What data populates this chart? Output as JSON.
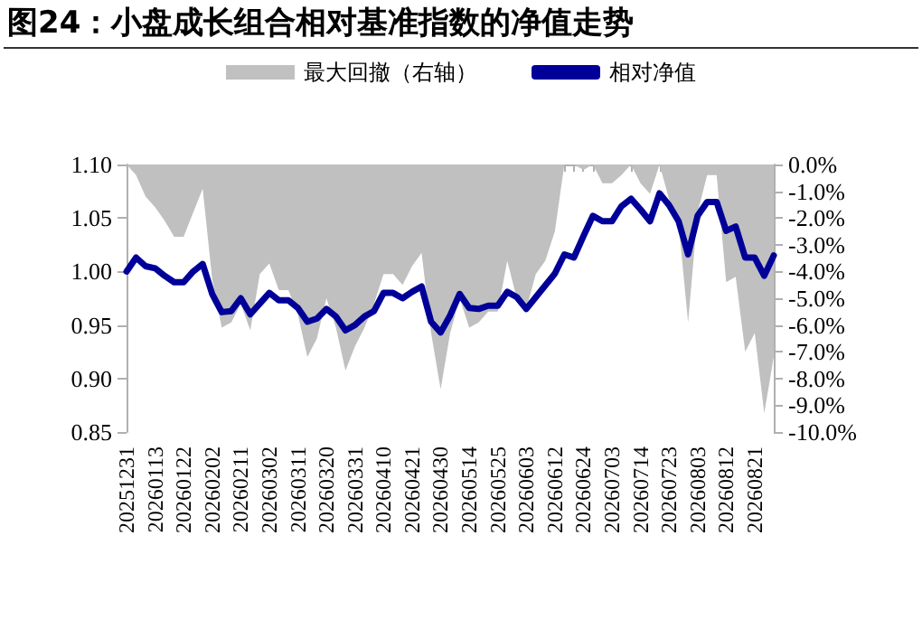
{
  "chart_data": {
    "type": "line",
    "title": "图24：小盘成长组合相对基准指数的净值走势",
    "categories": [
      "20251231",
      null,
      null,
      "20260113",
      null,
      null,
      "20260122",
      null,
      null,
      "20260202",
      null,
      null,
      "20260211",
      null,
      null,
      "20260302",
      null,
      null,
      "20260311",
      null,
      null,
      "20260320",
      null,
      null,
      "20260331",
      null,
      null,
      "20260410",
      null,
      null,
      "20260421",
      null,
      null,
      "20260430",
      null,
      null,
      "20260514",
      null,
      null,
      "20260525",
      null,
      null,
      "20260603",
      null,
      null,
      "20260612",
      null,
      null,
      "20260624",
      null,
      null,
      "20260703",
      null,
      null,
      "20260714",
      null,
      null,
      "20260723",
      null,
      null,
      "20260803",
      null,
      null,
      "20260812",
      null,
      null,
      "20260821",
      null,
      null
    ],
    "series": [
      {
        "name": "最大回撤（右轴）",
        "type": "area",
        "axis": "y2",
        "color": "#c0c0c0",
        "values": [
          0,
          -0.4,
          -1.2,
          -1.6,
          -2.1,
          -2.7,
          -2.7,
          -1.8,
          -0.9,
          -4.3,
          -6.1,
          -5.9,
          -5.2,
          -6.2,
          -4.1,
          -3.7,
          -4.7,
          -4.7,
          -5.6,
          -7.2,
          -6.5,
          -5.0,
          -6.1,
          -7.7,
          -6.8,
          -6.1,
          -5.2,
          -4.1,
          -4.1,
          -4.5,
          -3.8,
          -3.3,
          -6.3,
          -8.4,
          -6.3,
          -5.0,
          -6.1,
          -5.9,
          -5.5,
          -5.5,
          -3.6,
          -5.0,
          -5.4,
          -4.1,
          -3.6,
          -2.5,
          0,
          0,
          -0.2,
          0,
          -0.7,
          -0.7,
          -0.4,
          0,
          -0.7,
          -1.1,
          0,
          -1.3,
          -2.2,
          -5.9,
          -1.8,
          -0.4,
          -0.4,
          -4.4,
          -4.2,
          -7.0,
          -6.3,
          -9.3,
          -7.2
        ]
      },
      {
        "name": "相对净值",
        "type": "line",
        "color": "#000099",
        "values": [
          1.0,
          1.013,
          1.005,
          1.003,
          0.996,
          0.99,
          0.99,
          1.0,
          1.007,
          0.979,
          0.962,
          0.963,
          0.975,
          0.96,
          0.97,
          0.98,
          0.973,
          0.973,
          0.966,
          0.953,
          0.956,
          0.965,
          0.958,
          0.945,
          0.95,
          0.958,
          0.963,
          0.98,
          0.98,
          0.975,
          0.981,
          0.986,
          0.953,
          0.943,
          0.959,
          0.979,
          0.966,
          0.965,
          0.968,
          0.968,
          0.981,
          0.976,
          0.965,
          0.976,
          0.987,
          0.998,
          1.016,
          1.013,
          1.033,
          1.052,
          1.047,
          1.047,
          1.061,
          1.068,
          1.058,
          1.047,
          1.073,
          1.062,
          1.047,
          1.016,
          1.052,
          1.065,
          1.065,
          1.038,
          1.042,
          1.013,
          1.013,
          0.996,
          1.015
        ]
      }
    ],
    "ylim": [
      0.85,
      1.1
    ],
    "yticks": [
      {
        "value": 0.85,
        "label": "0.85"
      },
      {
        "value": 0.9,
        "label": "0.90"
      },
      {
        "value": 0.95,
        "label": "0.95"
      },
      {
        "value": 1.0,
        "label": "1.00"
      },
      {
        "value": 1.05,
        "label": "1.05"
      },
      {
        "value": 1.1,
        "label": "1.10"
      }
    ],
    "y2lim": [
      -10,
      0
    ],
    "y2ticks": [
      {
        "value": -10,
        "label": "-10.0%"
      },
      {
        "value": -9,
        "label": "-9.0%"
      },
      {
        "value": -8,
        "label": "-8.0%"
      },
      {
        "value": -7,
        "label": "-7.0%"
      },
      {
        "value": -6,
        "label": "-6.0%"
      },
      {
        "value": -5,
        "label": "-5.0%"
      },
      {
        "value": -4,
        "label": "-4.0%"
      },
      {
        "value": -3,
        "label": "-3.0%"
      },
      {
        "value": -2,
        "label": "-2.0%"
      },
      {
        "value": -1,
        "label": "-1.0%"
      },
      {
        "value": 0,
        "label": "0.0%"
      }
    ],
    "legend": "top",
    "grid": false,
    "marker": "none",
    "line_style": "solid"
  }
}
